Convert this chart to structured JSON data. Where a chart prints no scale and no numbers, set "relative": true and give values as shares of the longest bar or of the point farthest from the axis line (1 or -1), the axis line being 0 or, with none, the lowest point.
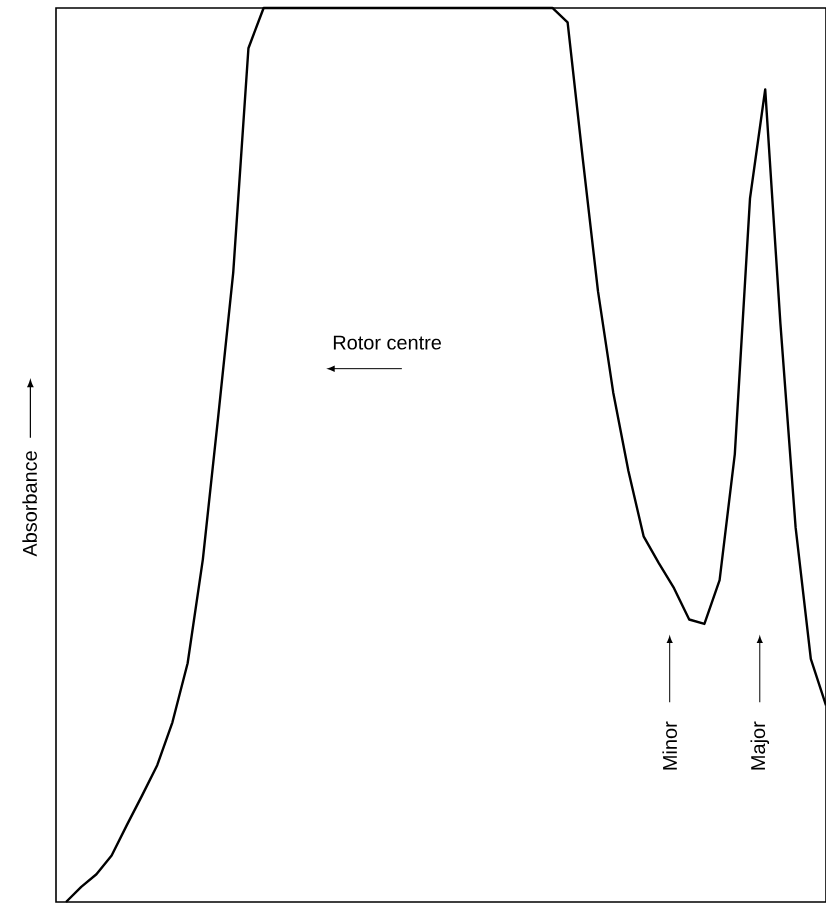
{
  "chart_data": {
    "type": "line",
    "relative": true,
    "ylabel": "Absorbance",
    "color": "#000000",
    "annotations": [
      "Rotor centre",
      "Minor",
      "Major"
    ],
    "categories": [
      null,
      null,
      null,
      null,
      null,
      null,
      null,
      null,
      null,
      null,
      null,
      null,
      null,
      null,
      null,
      null,
      null,
      null,
      null,
      null,
      null,
      null,
      null,
      null,
      null,
      null,
      null,
      null,
      null,
      null,
      null,
      null,
      null,
      null,
      null,
      null,
      null,
      null,
      null,
      null,
      null,
      null,
      null,
      null,
      null,
      null,
      null,
      null,
      null,
      null,
      null
    ],
    "values": [
      0.0,
      0.017,
      0.031,
      0.052,
      0.086,
      0.119,
      0.153,
      0.201,
      0.267,
      0.383,
      0.541,
      0.704,
      0.955,
      1.0,
      1.0,
      1.0,
      1.0,
      1.0,
      1.0,
      1.0,
      1.0,
      1.0,
      1.0,
      1.0,
      1.0,
      1.0,
      1.0,
      1.0,
      1.0,
      1.0,
      1.0,
      1.0,
      1.0,
      0.984,
      0.831,
      0.683,
      0.57,
      0.482,
      0.409,
      0.379,
      0.351,
      0.316,
      0.311,
      0.36,
      0.501,
      0.787,
      0.909,
      0.647,
      0.419,
      0.272,
      0.22
    ]
  }
}
